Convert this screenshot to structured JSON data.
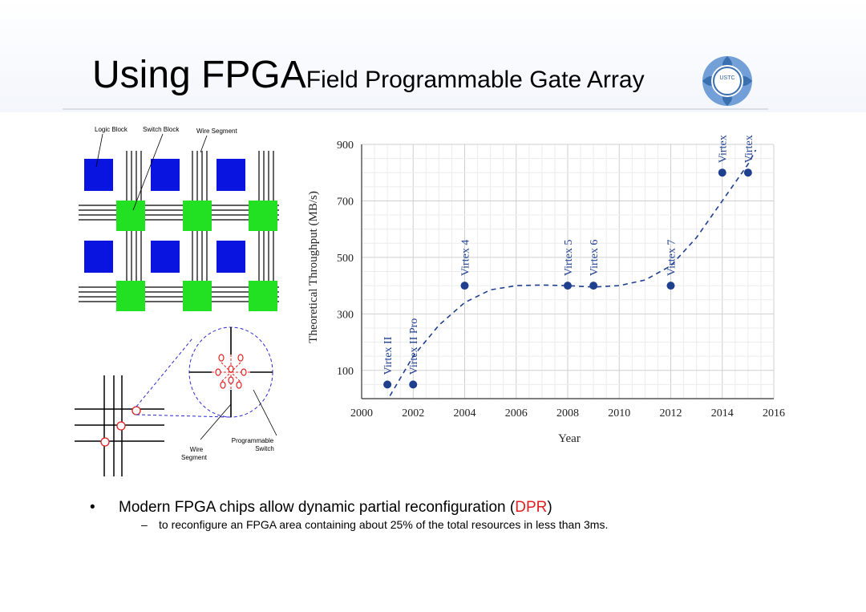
{
  "slide": {
    "title_main": "Using FPGA",
    "title_sub": "Field Programmable Gate Array",
    "logo_text": "USTC"
  },
  "diagram": {
    "labels": {
      "logic_block": "Logic Block",
      "switch_block": "Switch Block",
      "wire_segment": "Wire Segment",
      "wire": "Wire",
      "segment": "Segment",
      "programmable": "Programmable",
      "switch": "Switch"
    },
    "colors": {
      "logic_block": "#0a14e0",
      "switch_block": "#22e022",
      "switch": "#e02020",
      "zoom": "#2a2ad0"
    }
  },
  "chart_data": {
    "type": "scatter",
    "xlabel": "Year",
    "ylabel": "Theoretical Throughput (MB/s)",
    "xlim": [
      2000,
      2016
    ],
    "ylim": [
      0,
      900
    ],
    "xticks": [
      2000,
      2002,
      2004,
      2006,
      2008,
      2010,
      2012,
      2014,
      2016
    ],
    "yticks": [
      100,
      300,
      500,
      700,
      900
    ],
    "grid": true,
    "color": "#1f3f8f",
    "points": [
      {
        "x": 2001,
        "y": 50,
        "label": "Virtex II"
      },
      {
        "x": 2002,
        "y": 50,
        "label": "Virtex II Pro"
      },
      {
        "x": 2004,
        "y": 400,
        "label": "Virtex 4"
      },
      {
        "x": 2008,
        "y": 400,
        "label": "Virtex 5"
      },
      {
        "x": 2009,
        "y": 400,
        "label": "Virtex 6"
      },
      {
        "x": 2012,
        "y": 400,
        "label": "Virtex 7"
      },
      {
        "x": 2014,
        "y": 800,
        "label": "Virtex UltraScale"
      },
      {
        "x": 2015,
        "y": 800,
        "label": "Virtex UltraScale+"
      }
    ],
    "trend": {
      "x": [
        2001.1,
        2002,
        2003,
        2004,
        2005,
        2006,
        2007,
        2008,
        2009,
        2010,
        2011,
        2012,
        2013,
        2014,
        2015,
        2015.3
      ],
      "y": [
        10,
        150,
        260,
        340,
        385,
        400,
        402,
        400,
        395,
        400,
        420,
        470,
        570,
        700,
        830,
        880
      ]
    }
  },
  "bullets": {
    "main_prefix": "Modern FPGA chips allow dynamic partial reconfiguration (",
    "main_highlight": "DPR",
    "main_suffix": ")",
    "sub": "to reconfigure an FPGA area containing about 25% of the total resources in less than 3ms.",
    "bullet_glyph": "•",
    "dash_glyph": "–"
  }
}
